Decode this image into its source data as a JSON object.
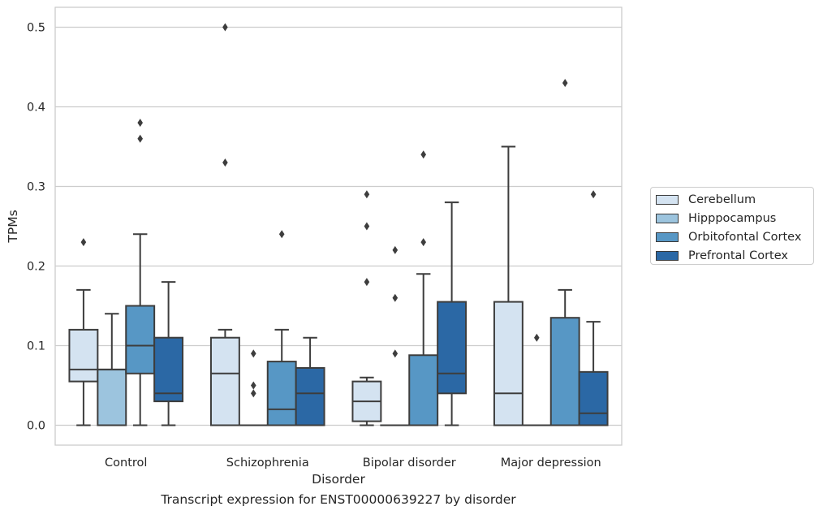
{
  "chart_data": {
    "type": "box",
    "title": "",
    "caption": "Transcript expression for ENST00000639227 by disorder",
    "xlabel": "Disorder",
    "ylabel": "TPMs",
    "ylim": [
      -0.025,
      0.525
    ],
    "yticks": [
      "0.0",
      "0.1",
      "0.2",
      "0.3",
      "0.4",
      "0.5"
    ],
    "ytick_values": [
      0.0,
      0.1,
      0.2,
      0.3,
      0.4,
      0.5
    ],
    "grid": "horizontal",
    "legend_position": "right",
    "categories": [
      "Control",
      "Schizophrenia",
      "Bipolar disorder",
      "Major depression"
    ],
    "series": [
      {
        "name": "Cerebellum",
        "color": "#d4e3f1",
        "boxes": [
          {
            "whisker_low": 0.0,
            "q1": 0.055,
            "median": 0.07,
            "q3": 0.12,
            "whisker_high": 0.17,
            "outliers": [
              0.23
            ]
          },
          {
            "whisker_low": 0.0,
            "q1": 0.0,
            "median": 0.065,
            "q3": 0.11,
            "whisker_high": 0.12,
            "outliers": [
              0.33,
              0.5
            ]
          },
          {
            "whisker_low": 0.0,
            "q1": 0.005,
            "median": 0.03,
            "q3": 0.055,
            "whisker_high": 0.06,
            "outliers": [
              0.18,
              0.25,
              0.29
            ]
          },
          {
            "whisker_low": 0.0,
            "q1": 0.0,
            "median": 0.04,
            "q3": 0.155,
            "whisker_high": 0.35,
            "outliers": []
          }
        ]
      },
      {
        "name": "Hipppocampus",
        "color": "#9cc4de",
        "boxes": [
          {
            "whisker_low": 0.0,
            "q1": 0.0,
            "median": 0.07,
            "q3": 0.07,
            "whisker_high": 0.14,
            "outliers": []
          },
          {
            "whisker_low": 0.0,
            "q1": 0.0,
            "median": 0.0,
            "q3": 0.0,
            "whisker_high": 0.0,
            "outliers": [
              0.04,
              0.05,
              0.09
            ]
          },
          {
            "whisker_low": 0.0,
            "q1": 0.0,
            "median": 0.0,
            "q3": 0.0,
            "whisker_high": 0.0,
            "outliers": [
              0.09,
              0.16,
              0.22
            ]
          },
          {
            "whisker_low": 0.0,
            "q1": 0.0,
            "median": 0.0,
            "q3": 0.0,
            "whisker_high": 0.0,
            "outliers": [
              0.11
            ]
          }
        ]
      },
      {
        "name": "Orbitofontal Cortex",
        "color": "#5797c5",
        "boxes": [
          {
            "whisker_low": 0.0,
            "q1": 0.065,
            "median": 0.1,
            "q3": 0.15,
            "whisker_high": 0.24,
            "outliers": [
              0.36,
              0.38
            ]
          },
          {
            "whisker_low": 0.0,
            "q1": 0.0,
            "median": 0.02,
            "q3": 0.08,
            "whisker_high": 0.12,
            "outliers": [
              0.24
            ]
          },
          {
            "whisker_low": 0.0,
            "q1": 0.0,
            "median": 0.0,
            "q3": 0.088,
            "whisker_high": 0.19,
            "outliers": [
              0.23,
              0.34
            ]
          },
          {
            "whisker_low": 0.0,
            "q1": 0.0,
            "median": 0.0,
            "q3": 0.135,
            "whisker_high": 0.17,
            "outliers": [
              0.43
            ]
          }
        ]
      },
      {
        "name": "Prefrontal Cortex",
        "color": "#2b68a5",
        "boxes": [
          {
            "whisker_low": 0.0,
            "q1": 0.03,
            "median": 0.04,
            "q3": 0.11,
            "whisker_high": 0.18,
            "outliers": []
          },
          {
            "whisker_low": 0.0,
            "q1": 0.0,
            "median": 0.04,
            "q3": 0.072,
            "whisker_high": 0.11,
            "outliers": []
          },
          {
            "whisker_low": 0.0,
            "q1": 0.04,
            "median": 0.065,
            "q3": 0.155,
            "whisker_high": 0.28,
            "outliers": []
          },
          {
            "whisker_low": 0.0,
            "q1": 0.0,
            "median": 0.015,
            "q3": 0.067,
            "whisker_high": 0.13,
            "outliers": [
              0.29
            ]
          }
        ]
      }
    ]
  }
}
